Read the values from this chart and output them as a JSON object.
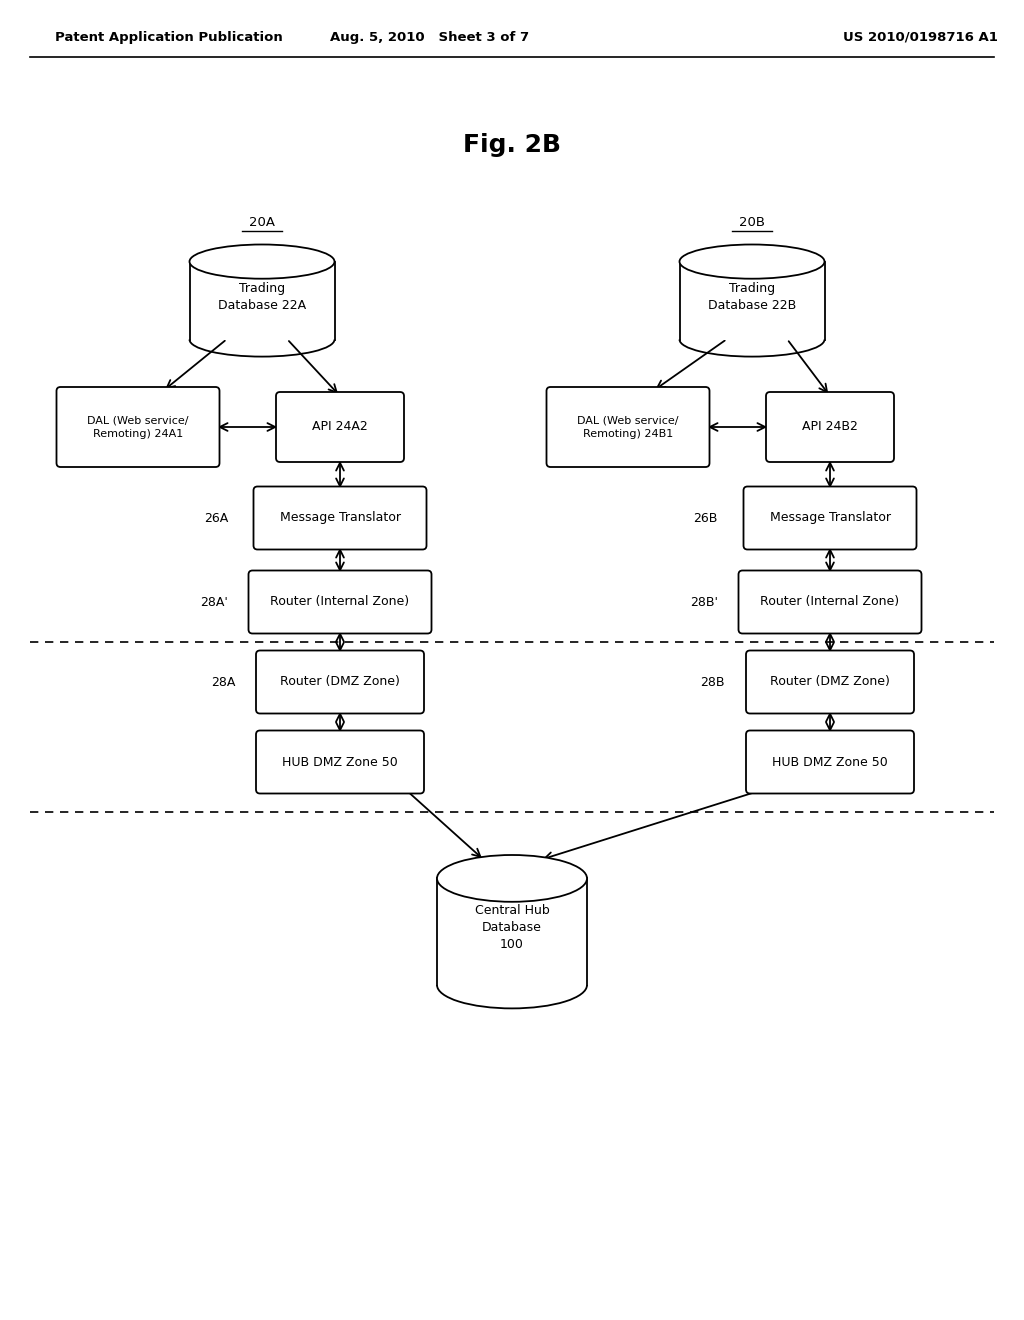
{
  "title": "Fig. 2B",
  "header_left": "Patent Application Publication",
  "header_center": "Aug. 5, 2010   Sheet 3 of 7",
  "header_right": "US 2010/0198716 A1",
  "bg_color": "#ffffff"
}
